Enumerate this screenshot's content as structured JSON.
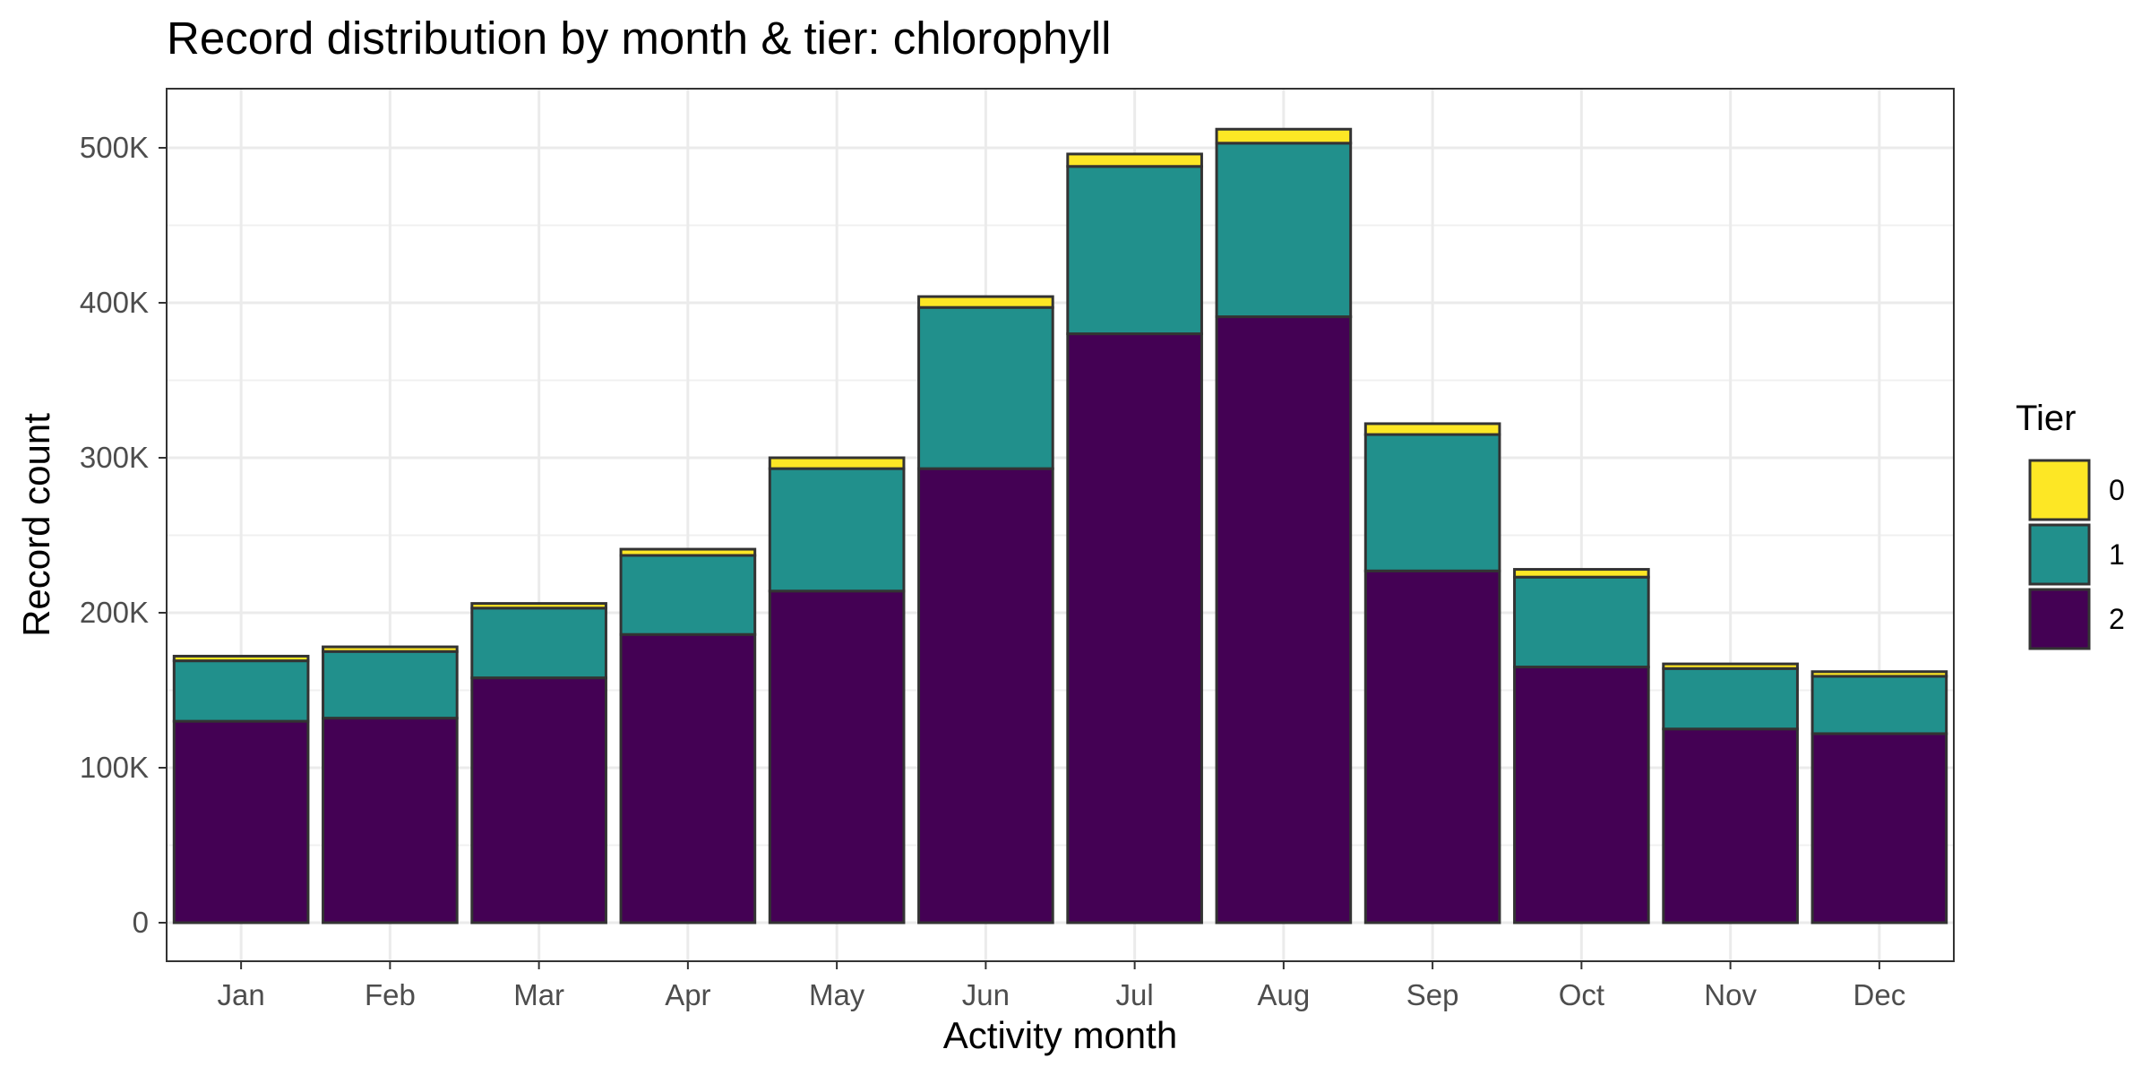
{
  "chart_data": {
    "type": "bar",
    "stacked": true,
    "title": "Record distribution by month & tier: chlorophyll",
    "xlabel": "Activity month",
    "ylabel": "Record count",
    "ylim": [
      0,
      535000
    ],
    "y_ticks": [
      0,
      100000,
      200000,
      300000,
      400000,
      500000
    ],
    "y_tick_labels": [
      "0",
      "100K",
      "200K",
      "300K",
      "400K",
      "500K"
    ],
    "grid": true,
    "legend": {
      "title": "Tier",
      "position": "right"
    },
    "categories": [
      "Jan",
      "Feb",
      "Mar",
      "Apr",
      "May",
      "Jun",
      "Jul",
      "Aug",
      "Sep",
      "Oct",
      "Nov",
      "Dec"
    ],
    "series": [
      {
        "name": "2",
        "color": "#440154",
        "values": [
          130000,
          132000,
          158000,
          186000,
          214000,
          293000,
          380000,
          391000,
          227000,
          165000,
          125000,
          122000
        ]
      },
      {
        "name": "1",
        "color": "#21908c",
        "values": [
          39000,
          43000,
          45000,
          51000,
          79000,
          104000,
          108000,
          112000,
          88000,
          58000,
          39000,
          37000
        ]
      },
      {
        "name": "0",
        "color": "#fde725",
        "values": [
          3000,
          3000,
          3000,
          4000,
          7000,
          7000,
          8000,
          9000,
          7000,
          5000,
          3000,
          3000
        ]
      }
    ],
    "legend_order": [
      "0",
      "1",
      "2"
    ]
  }
}
